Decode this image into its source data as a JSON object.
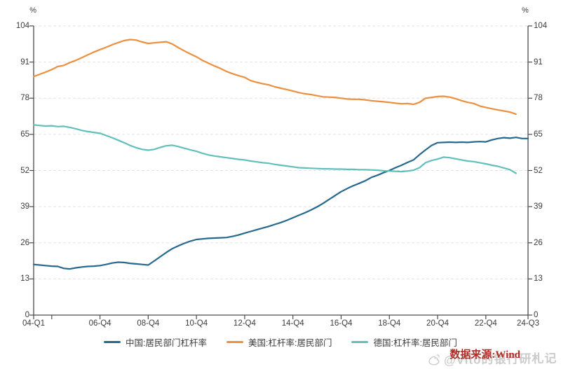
{
  "chart_data": {
    "type": "line",
    "title": "",
    "y_unit": "%",
    "frequency": "quarterly",
    "x_start": "2004-Q1",
    "ylim": [
      0,
      104
    ],
    "y_ticks": [
      0,
      13,
      26,
      39,
      52,
      65,
      78,
      91,
      104
    ],
    "grid": "horizontal-dashed",
    "legend_position": "bottom",
    "x_ticks": [
      {
        "q": 0,
        "label": "04-Q1"
      },
      {
        "q": 3,
        "label": ""
      },
      {
        "q": 11,
        "label": "06-Q4"
      },
      {
        "q": 19,
        "label": "08-Q4"
      },
      {
        "q": 27,
        "label": "10-Q4"
      },
      {
        "q": 35,
        "label": "12-Q4"
      },
      {
        "q": 43,
        "label": "14-Q4"
      },
      {
        "q": 51,
        "label": "16-Q4"
      },
      {
        "q": 59,
        "label": "18-Q4"
      },
      {
        "q": 67,
        "label": "20-Q4"
      },
      {
        "q": 75,
        "label": "22-Q4"
      },
      {
        "q": 82,
        "label": "24-Q3"
      }
    ],
    "series": [
      {
        "name": "中国:居民部门杠杆率",
        "color": "#26698E",
        "start": "2004-Q1",
        "end": "2024-Q3",
        "values": [
          18.2,
          18.0,
          17.8,
          17.6,
          17.5,
          16.8,
          16.6,
          17.0,
          17.3,
          17.5,
          17.6,
          17.8,
          18.2,
          18.7,
          19.0,
          18.9,
          18.6,
          18.4,
          18.2,
          18.0,
          19.5,
          21.0,
          22.5,
          23.9,
          24.9,
          25.8,
          26.6,
          27.2,
          27.4,
          27.6,
          27.7,
          27.8,
          27.9,
          28.3,
          28.8,
          29.5,
          30.1,
          30.7,
          31.3,
          31.9,
          32.6,
          33.3,
          34.1,
          35.0,
          35.9,
          36.8,
          37.8,
          38.9,
          40.2,
          41.6,
          43.0,
          44.4,
          45.5,
          46.5,
          47.4,
          48.3,
          49.5,
          50.3,
          51.2,
          52.0,
          53.0,
          53.9,
          54.9,
          55.8,
          57.7,
          59.4,
          61.0,
          62.0,
          62.1,
          62.2,
          62.1,
          62.2,
          62.1,
          62.3,
          62.4,
          62.3,
          63.0,
          63.5,
          63.8,
          63.6,
          63.9,
          63.5,
          63.5
        ]
      },
      {
        "name": "美国:杠杆率:居民部门",
        "color": "#EC9040",
        "start": "2004-Q1",
        "end": "2024-Q1",
        "values": [
          85.8,
          86.6,
          87.4,
          88.3,
          89.4,
          89.8,
          90.8,
          91.6,
          92.6,
          93.6,
          94.6,
          95.5,
          96.3,
          97.2,
          98.0,
          98.7,
          99.1,
          98.9,
          98.2,
          97.7,
          97.9,
          98.1,
          98.3,
          97.5,
          96.2,
          95.0,
          93.9,
          92.9,
          91.6,
          90.6,
          89.6,
          88.7,
          87.6,
          86.8,
          86.1,
          85.5,
          84.3,
          83.7,
          83.2,
          82.8,
          82.1,
          81.6,
          81.1,
          80.6,
          80.0,
          79.6,
          79.3,
          78.9,
          78.5,
          78.4,
          78.3,
          78.0,
          77.7,
          77.6,
          77.6,
          77.4,
          77.1,
          76.9,
          76.7,
          76.5,
          76.2,
          76.0,
          76.1,
          75.8,
          76.5,
          78.0,
          78.3,
          78.6,
          78.7,
          78.4,
          77.8,
          77.1,
          76.5,
          76.1,
          75.2,
          74.7,
          74.2,
          73.8,
          73.4,
          73.0,
          72.3
        ]
      },
      {
        "name": "德国:杠杆率:居民部门",
        "color": "#62C0BB",
        "start": "2004-Q1",
        "end": "2024-Q1",
        "values": [
          68.4,
          68.2,
          68.0,
          68.1,
          67.8,
          67.9,
          67.5,
          67.0,
          66.4,
          66.0,
          65.7,
          65.4,
          64.6,
          63.8,
          62.9,
          62.0,
          61.0,
          60.2,
          59.6,
          59.3,
          59.6,
          60.3,
          60.9,
          61.1,
          60.6,
          60.0,
          59.4,
          58.9,
          58.2,
          57.6,
          57.2,
          56.9,
          56.6,
          56.3,
          56.0,
          55.8,
          55.4,
          55.1,
          54.8,
          54.6,
          54.2,
          53.9,
          53.6,
          53.3,
          53.0,
          52.9,
          52.8,
          52.7,
          52.6,
          52.6,
          52.5,
          52.5,
          52.4,
          52.4,
          52.3,
          52.3,
          52.2,
          52.1,
          51.9,
          51.8,
          51.7,
          51.6,
          51.8,
          52.1,
          53.0,
          54.8,
          55.6,
          56.1,
          56.8,
          56.6,
          56.2,
          55.8,
          55.4,
          55.2,
          54.8,
          54.4,
          53.9,
          53.5,
          52.9,
          52.3,
          51.0
        ]
      }
    ]
  },
  "footer": {
    "source_text": "数据来源:Wind",
    "watermark_text": "@Vito的银行研札记"
  }
}
